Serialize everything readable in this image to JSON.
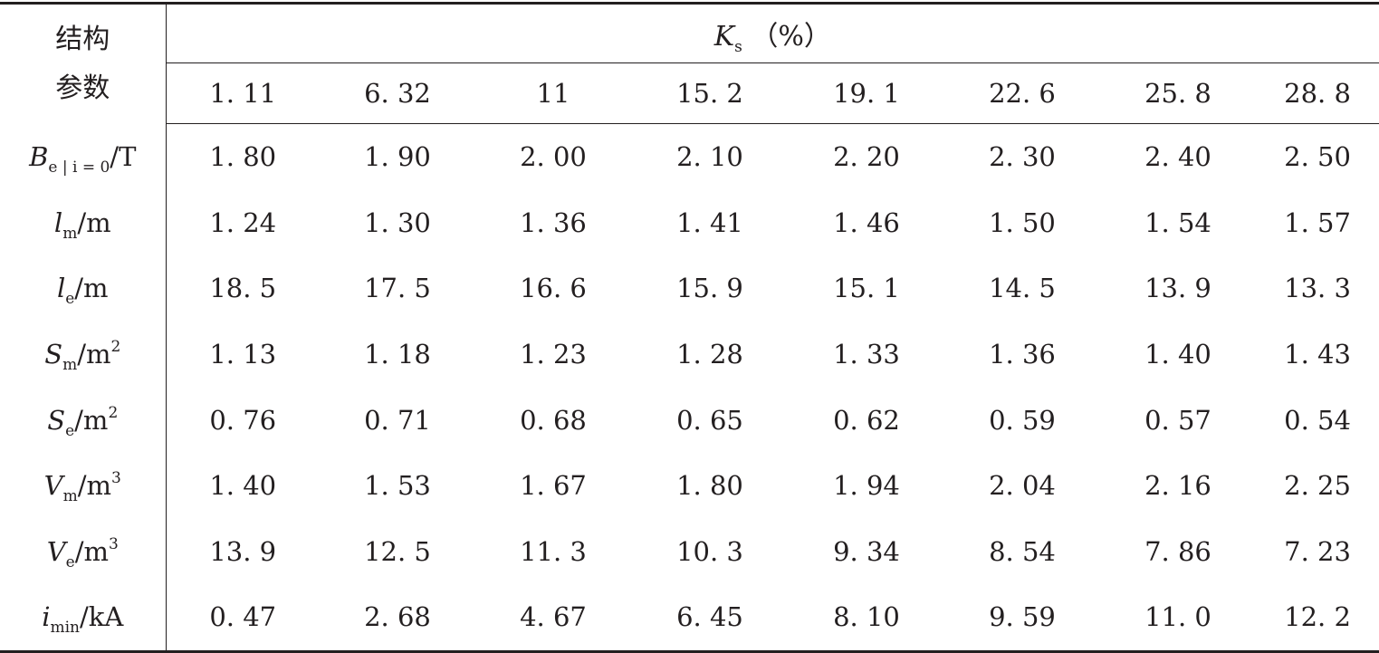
{
  "table": {
    "stub_header_line1": "结构",
    "stub_header_line2": "参数",
    "group_header": {
      "symbol": "K",
      "subscript": "s",
      "unit": "（%）"
    },
    "columns": [
      "1. 11",
      "6. 32",
      "11",
      "15. 2",
      "19. 1",
      "22. 6",
      "25. 8",
      "28. 8"
    ],
    "rows": [
      {
        "symbol": "B",
        "subscript": "e | i = 0",
        "superscript": "",
        "unit": "/T",
        "values": [
          "1. 80",
          "1. 90",
          "2. 00",
          "2. 10",
          "2. 20",
          "2. 30",
          "2. 40",
          "2. 50"
        ]
      },
      {
        "symbol": "l",
        "subscript": "m",
        "superscript": "",
        "unit": "/m",
        "values": [
          "1. 24",
          "1. 30",
          "1. 36",
          "1. 41",
          "1. 46",
          "1. 50",
          "1. 54",
          "1. 57"
        ]
      },
      {
        "symbol": "l",
        "subscript": "e",
        "superscript": "",
        "unit": "/m",
        "values": [
          "18. 5",
          "17. 5",
          "16. 6",
          "15. 9",
          "15. 1",
          "14. 5",
          "13. 9",
          "13. 3"
        ]
      },
      {
        "symbol": "S",
        "subscript": "m",
        "superscript": "2",
        "unit": "/m",
        "values": [
          "1. 13",
          "1. 18",
          "1. 23",
          "1. 28",
          "1. 33",
          "1. 36",
          "1. 40",
          "1. 43"
        ]
      },
      {
        "symbol": "S",
        "subscript": "e",
        "superscript": "2",
        "unit": "/m",
        "values": [
          "0. 76",
          "0. 71",
          "0. 68",
          "0. 65",
          "0. 62",
          "0. 59",
          "0. 57",
          "0. 54"
        ]
      },
      {
        "symbol": "V",
        "subscript": "m",
        "superscript": "3",
        "unit": "/m",
        "values": [
          "1. 40",
          "1. 53",
          "1. 67",
          "1. 80",
          "1. 94",
          "2. 04",
          "2. 16",
          "2. 25"
        ]
      },
      {
        "symbol": "V",
        "subscript": "e",
        "superscript": "3",
        "unit": "/m",
        "values": [
          "13. 9",
          "12. 5",
          "11. 3",
          "10. 3",
          "9. 34",
          "8. 54",
          "7. 86",
          "7. 23"
        ]
      },
      {
        "symbol": "i",
        "subscript": "min",
        "superscript": "",
        "unit": "/kA",
        "values": [
          "0. 47",
          "2. 68",
          "4. 67",
          "6. 45",
          "8. 10",
          "9. 59",
          "11. 0",
          "12. 2"
        ]
      }
    ]
  }
}
